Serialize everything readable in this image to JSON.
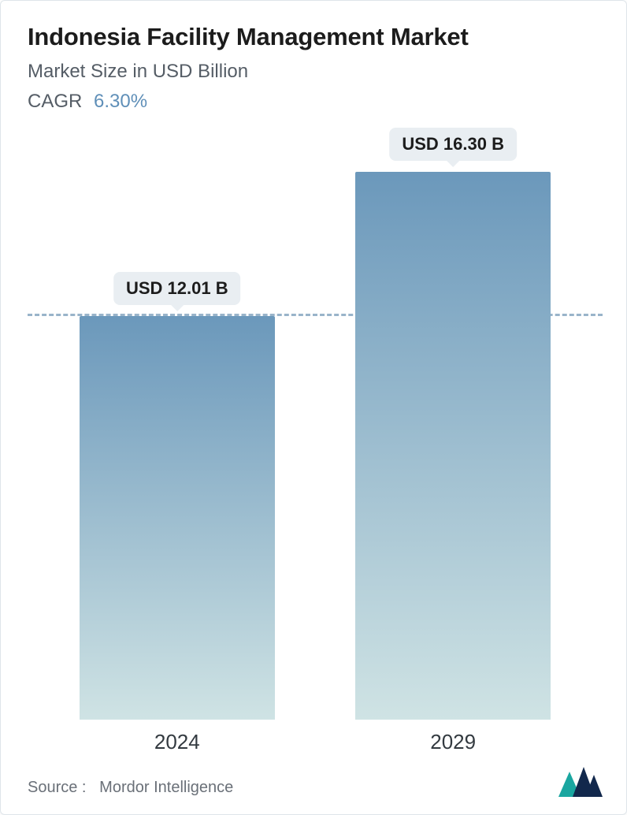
{
  "title": "Indonesia Facility Management Market",
  "subtitle": "Market Size in USD Billion",
  "cagr_label": "CAGR",
  "cagr_value": "6.30%",
  "chart": {
    "type": "bar",
    "categories": [
      "2024",
      "2029"
    ],
    "values": [
      12.01,
      16.3
    ],
    "value_labels": [
      "USD 12.01 B",
      "USD 16.30 B"
    ],
    "ylim_max": 16.5,
    "reference_line_value": 12.01,
    "bar_gradient_top": "#6b98bb",
    "bar_gradient_bottom": "#cfe3e4",
    "bar_width_pct": 34,
    "bar_positions_pct": [
      9,
      57
    ],
    "dashed_line_color": "#6e95b4",
    "pill_bg": "#e9eef2",
    "pill_text_color": "#1c1c1c",
    "pill_fontsize": 22,
    "xlabel_fontsize": 26,
    "background_color": "#ffffff"
  },
  "source_label": "Source :",
  "source_name": "Mordor Intelligence",
  "logo_colors": {
    "teal": "#1aa6a0",
    "navy": "#12284c"
  },
  "colors": {
    "title": "#1c1c1c",
    "subtitle": "#555d66",
    "cagr_value": "#5f8fb8",
    "source_text": "#6a7078"
  },
  "typography": {
    "title_fontsize": 31,
    "title_weight": 700,
    "subtitle_fontsize": 24,
    "cagr_fontsize": 24,
    "source_fontsize": 20
  }
}
